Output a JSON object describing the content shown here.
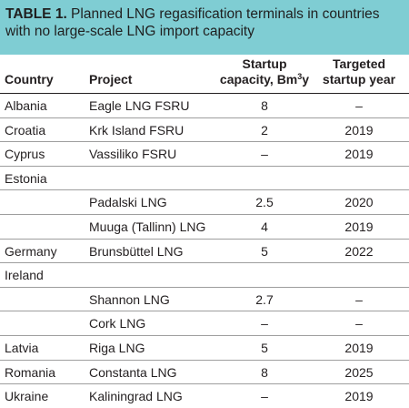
{
  "table": {
    "title_label": "TABLE 1.",
    "title_text": " Planned LNG regasification terminals in countries with no large-scale LNG import capacity",
    "columns": {
      "country": "Country",
      "project": "Project",
      "capacity_main": "Startup",
      "capacity_unit_prefix": "capacity, Bm",
      "capacity_unit_sup": "3",
      "capacity_unit_suffix": "y",
      "year_line1": "Targeted",
      "year_line2": "startup year"
    },
    "rows": [
      {
        "country": "Albania",
        "project": "Eagle LNG FSRU",
        "capacity": "8",
        "year": "–"
      },
      {
        "country": "Croatia",
        "project": "Krk Island FSRU",
        "capacity": "2",
        "year": "2019"
      },
      {
        "country": "Cyprus",
        "project": "Vassiliko FSRU",
        "capacity": "–",
        "year": "2019"
      },
      {
        "country": "Estonia",
        "project": "",
        "capacity": "",
        "year": ""
      },
      {
        "country": "",
        "project": "Padalski LNG",
        "capacity": "2.5",
        "year": "2020"
      },
      {
        "country": "",
        "project": "Muuga (Tallinn) LNG",
        "capacity": "4",
        "year": "2019"
      },
      {
        "country": "Germany",
        "project": "Brunsbüttel LNG",
        "capacity": "5",
        "year": "2022"
      },
      {
        "country": "Ireland",
        "project": "",
        "capacity": "",
        "year": ""
      },
      {
        "country": "",
        "project": "Shannon LNG",
        "capacity": "2.7",
        "year": "–"
      },
      {
        "country": "",
        "project": "Cork LNG",
        "capacity": "–",
        "year": "–"
      },
      {
        "country": "Latvia",
        "project": "Riga LNG",
        "capacity": "5",
        "year": "2019"
      },
      {
        "country": "Romania",
        "project": "Constanta LNG",
        "capacity": "8",
        "year": "2025"
      },
      {
        "country": "Ukraine",
        "project": "Kaliningrad LNG",
        "capacity": "–",
        "year": "2019"
      }
    ]
  },
  "colors": {
    "title_background": "#7fcdd3",
    "text": "#231f20",
    "row_divider": "#9e9e9e"
  }
}
